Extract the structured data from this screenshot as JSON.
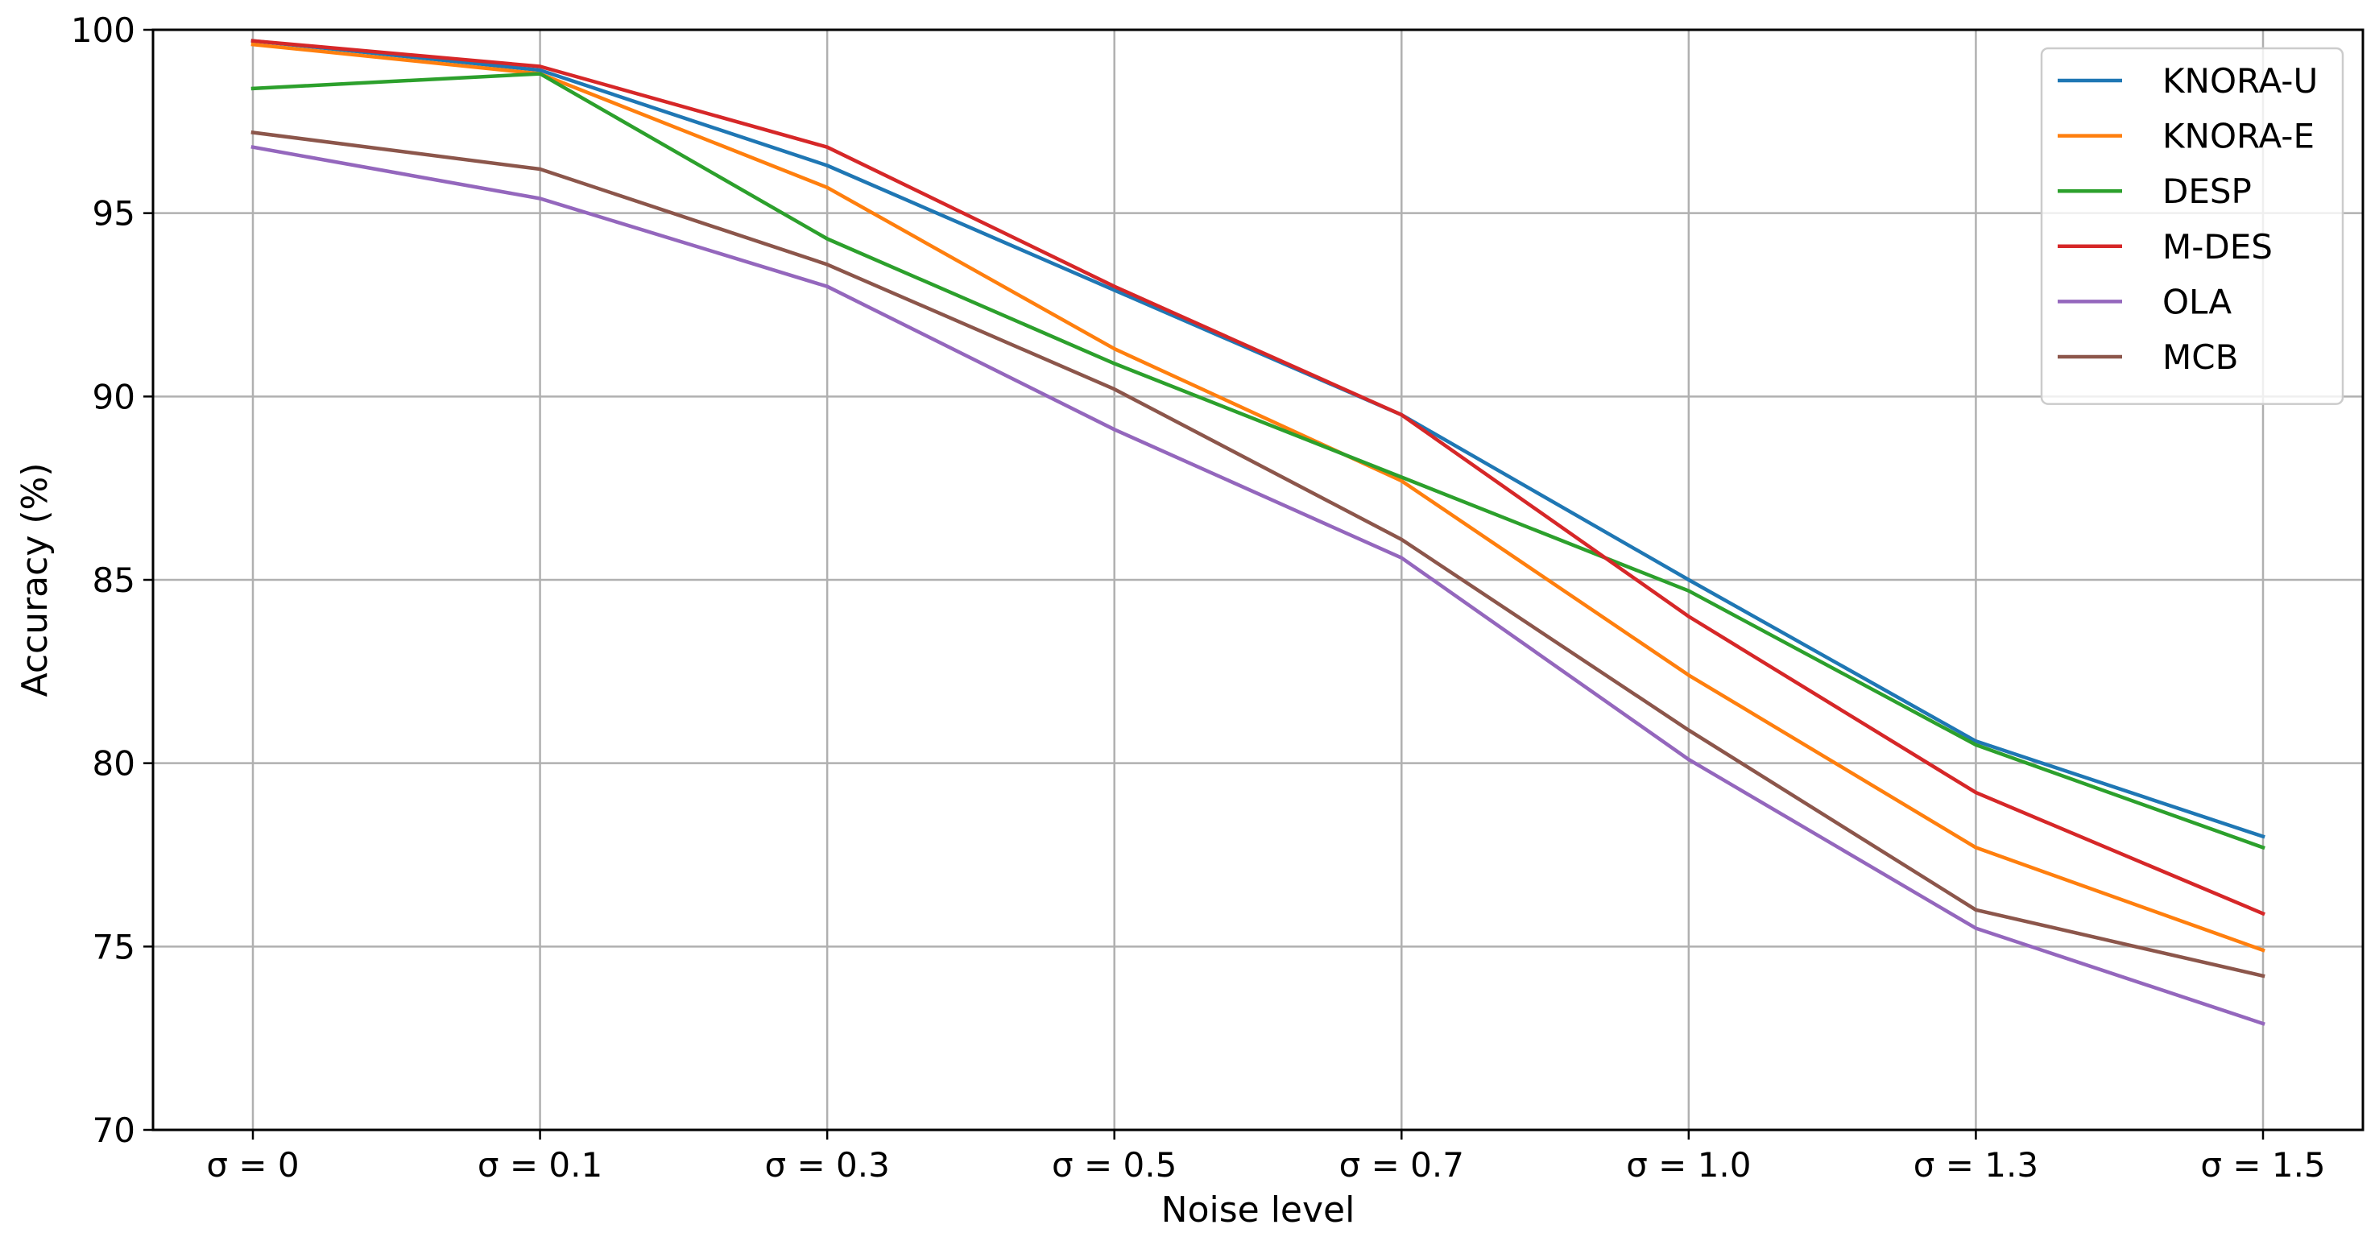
{
  "chart_data": {
    "type": "line",
    "title": "",
    "xlabel": "Noise level",
    "ylabel": "Accuracy (%)",
    "categories": [
      "σ = 0",
      "σ = 0.1",
      "σ = 0.3",
      "σ = 0.5",
      "σ = 0.7",
      "σ = 1.0",
      "σ = 1.3",
      "σ = 1.5"
    ],
    "ylim": [
      70,
      100
    ],
    "yticks": [
      70,
      75,
      80,
      85,
      90,
      95,
      100
    ],
    "grid": true,
    "legend_position": "top-right",
    "series": [
      {
        "name": "KNORA-U",
        "color": "#1f77b4",
        "values": [
          99.7,
          98.9,
          96.3,
          92.9,
          89.5,
          85.0,
          80.6,
          78.0
        ]
      },
      {
        "name": "KNORA-E",
        "color": "#ff7f0e",
        "values": [
          99.6,
          98.8,
          95.7,
          91.3,
          87.7,
          82.4,
          77.7,
          74.9
        ]
      },
      {
        "name": "DESP",
        "color": "#2ca02c",
        "values": [
          98.4,
          98.8,
          94.3,
          90.9,
          87.8,
          84.7,
          80.5,
          77.7
        ]
      },
      {
        "name": "M-DES",
        "color": "#d62728",
        "values": [
          99.7,
          99.0,
          96.8,
          93.0,
          89.5,
          84.0,
          79.2,
          75.9
        ]
      },
      {
        "name": "OLA",
        "color": "#9467bd",
        "values": [
          96.8,
          95.4,
          93.0,
          89.1,
          85.6,
          80.1,
          75.5,
          72.9
        ]
      },
      {
        "name": "MCB",
        "color": "#8c564b",
        "values": [
          97.2,
          96.2,
          93.6,
          90.2,
          86.1,
          80.9,
          76.0,
          74.2
        ]
      }
    ]
  }
}
